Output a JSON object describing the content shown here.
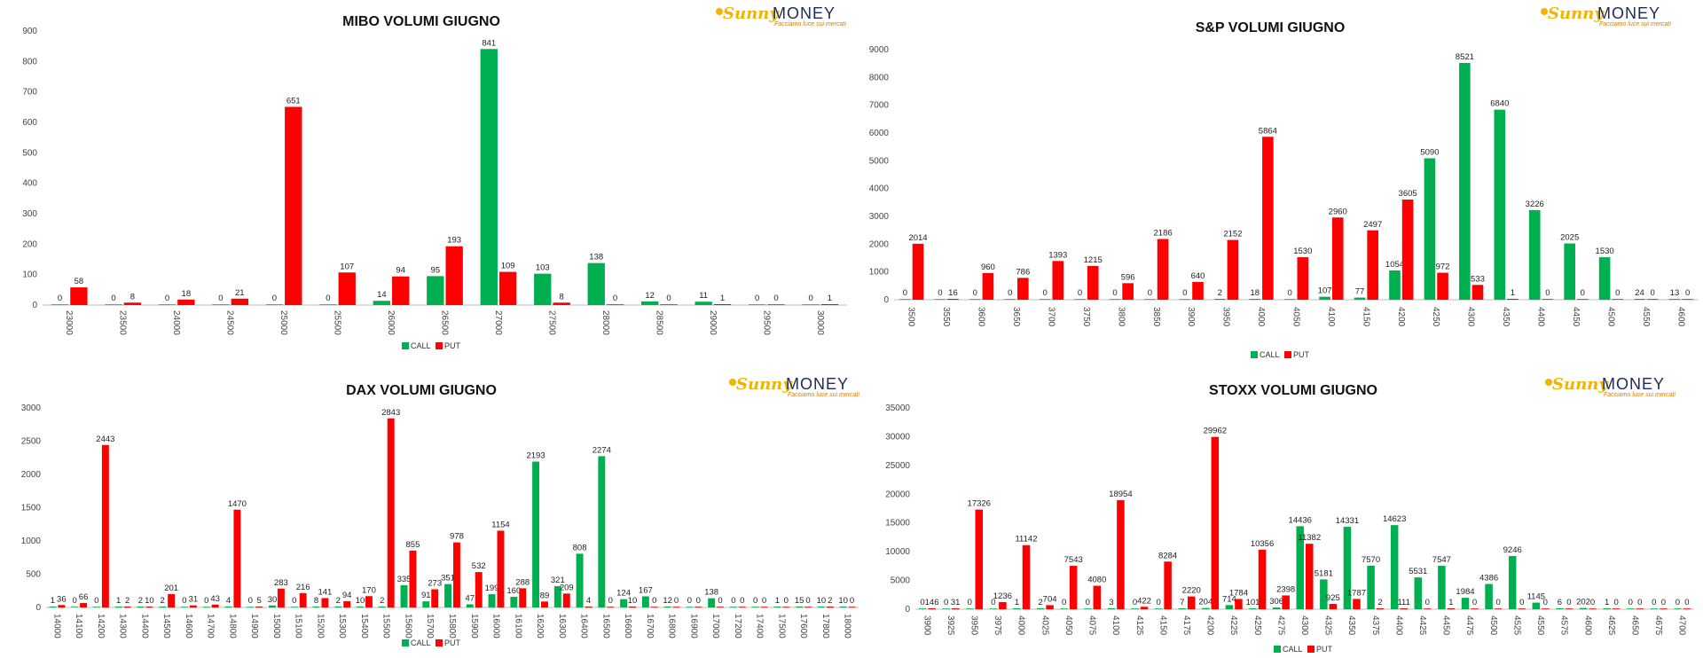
{
  "colors": {
    "call": "#00b050",
    "put": "#ff0000",
    "axis": "#bfbfbf"
  },
  "logo": {
    "sunny": "Sunny",
    "money": "MONEY",
    "tagline": "Facciamo luce sui mercati"
  },
  "legend": {
    "call": "CALL",
    "put": "PUT"
  },
  "charts": [
    {
      "id": "mibo",
      "chart_data": {
        "type": "bar",
        "title": "MIBO VOLUMI GIUGNO",
        "categories": [
          "23000",
          "23500",
          "24000",
          "24500",
          "25000",
          "25500",
          "26000",
          "26500",
          "27000",
          "27500",
          "28000",
          "28500",
          "29000",
          "29500",
          "30000"
        ],
        "series": [
          {
            "name": "CALL",
            "values": [
              0,
              0,
              0,
              0,
              0,
              0,
              14,
              95,
              841,
              103,
              138,
              12,
              11,
              0,
              0
            ]
          },
          {
            "name": "PUT",
            "values": [
              58,
              8,
              18,
              21,
              651,
              107,
              94,
              193,
              109,
              8,
              0,
              0,
              1,
              0,
              1
            ]
          }
        ],
        "ylim": [
          0,
          900
        ],
        "yticks": [
          0,
          100,
          200,
          300,
          400,
          500,
          600,
          700,
          800,
          900
        ],
        "legend_position": "bottom"
      }
    },
    {
      "id": "sp",
      "chart_data": {
        "type": "bar",
        "title": "S&P VOLUMI GIUGNO",
        "categories": [
          "3500",
          "3550",
          "3600",
          "3650",
          "3700",
          "3750",
          "3800",
          "3850",
          "3900",
          "3950",
          "4000",
          "4050",
          "4100",
          "4150",
          "4200",
          "4250",
          "4300",
          "4350",
          "4400",
          "4450",
          "4500",
          "4550",
          "4600"
        ],
        "series": [
          {
            "name": "CALL",
            "values": [
              0,
              0,
              0,
              0,
              0,
              0,
              0,
              0,
              0,
              2,
              18,
              0,
              107,
              77,
              1054,
              5090,
              8521,
              6840,
              3226,
              2025,
              1530,
              24,
              13
            ]
          },
          {
            "name": "PUT",
            "values": [
              2014,
              16,
              960,
              786,
              1393,
              1215,
              596,
              2186,
              640,
              2152,
              5864,
              1530,
              2960,
              2497,
              3605,
              972,
              533,
              1,
              0,
              0,
              0,
              0,
              0
            ]
          }
        ],
        "ylim": [
          0,
          9000
        ],
        "yticks": [
          0,
          1000,
          2000,
          3000,
          4000,
          5000,
          6000,
          7000,
          8000,
          9000
        ],
        "legend_position": "bottom"
      }
    },
    {
      "id": "dax",
      "chart_data": {
        "type": "bar",
        "title": "DAX VOLUMI GIUGNO",
        "categories": [
          "14000",
          "14100",
          "14200",
          "14300",
          "14400",
          "14500",
          "14600",
          "14700",
          "14800",
          "14900",
          "15000",
          "15100",
          "15200",
          "15300",
          "15400",
          "15500",
          "15600",
          "15700",
          "15800",
          "15900",
          "16000",
          "16100",
          "16200",
          "16300",
          "16400",
          "16500",
          "16600",
          "16700",
          "16800",
          "16900",
          "17000",
          "17200",
          "17400",
          "17500",
          "17600",
          "17800",
          "18000"
        ],
        "series": [
          {
            "name": "CALL",
            "values": [
              1,
              0,
              0,
              1,
              2,
              2,
              0,
              0,
              4,
              0,
              30,
              0,
              8,
              2,
              10,
              2,
              335,
              91,
              351,
              47,
              199,
              160,
              2193,
              321,
              808,
              2274,
              124,
              167,
              12,
              0,
              138,
              0,
              0,
              1,
              15,
              10,
              10
            ]
          },
          {
            "name": "PUT",
            "values": [
              36,
              66,
              2443,
              2,
              10,
              201,
              31,
              43,
              1470,
              5,
              283,
              216,
              141,
              94,
              170,
              2843,
              855,
              273,
              978,
              532,
              1154,
              288,
              89,
              209,
              4,
              0,
              10,
              0,
              0,
              0,
              0,
              0,
              0,
              0,
              0,
              2,
              0
            ]
          }
        ],
        "ylim": [
          0,
          3000
        ],
        "yticks": [
          0,
          500,
          1000,
          1500,
          2000,
          2500,
          3000
        ],
        "legend_position": "bottom"
      }
    },
    {
      "id": "stoxx",
      "chart_data": {
        "type": "bar",
        "title": "STOXX VOLUMI GIUGNO",
        "categories": [
          "3900",
          "3925",
          "3950",
          "3975",
          "4000",
          "4025",
          "4050",
          "4075",
          "4100",
          "4125",
          "4150",
          "4175",
          "4200",
          "4225",
          "4250",
          "4275",
          "4300",
          "4325",
          "4350",
          "4375",
          "4400",
          "4425",
          "4450",
          "4475",
          "4500",
          "4525",
          "4550",
          "4575",
          "4600",
          "4625",
          "4650",
          "4675",
          "4700"
        ],
        "series": [
          {
            "name": "CALL",
            "values": [
              0,
              0,
              0,
              0,
              1,
              2,
              0,
              0,
              3,
              0,
              0,
              7,
              204,
              714,
              101,
              306,
              14436,
              5181,
              14331,
              7570,
              14623,
              5531,
              7547,
              1984,
              4386,
              9246,
              1145,
              6,
              202,
              1,
              0,
              0,
              0
            ]
          },
          {
            "name": "PUT",
            "values": [
              146,
              31,
              17326,
              1236,
              11142,
              704,
              7543,
              4080,
              18954,
              422,
              8284,
              2220,
              29962,
              1784,
              10356,
              2398,
              11382,
              925,
              1787,
              2,
              111,
              0,
              1,
              0,
              0,
              0,
              0,
              0,
              0,
              0,
              0,
              0,
              0
            ]
          }
        ],
        "ylim": [
          0,
          35000
        ],
        "yticks": [
          0,
          5000,
          10000,
          15000,
          20000,
          25000,
          30000,
          35000
        ],
        "legend_position": "bottom"
      }
    }
  ]
}
